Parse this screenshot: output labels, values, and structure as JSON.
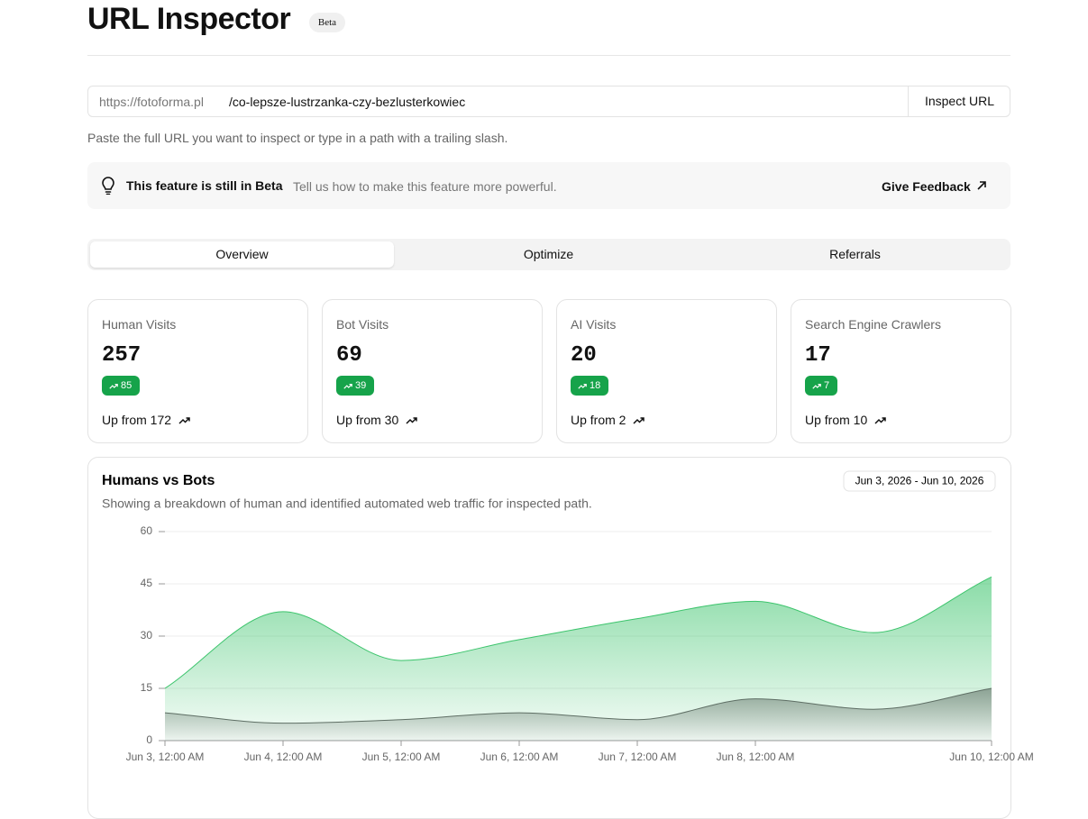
{
  "header": {
    "title": "URL Inspector",
    "badge": "Beta"
  },
  "url_input": {
    "prefix": "https://fotoforma.pl",
    "path": "/co-lepsze-lustrzanka-czy-bezlusterkowiec",
    "button": "Inspect URL",
    "hint": "Paste the full URL you want to inspect or type in a path with a trailing slash."
  },
  "banner": {
    "title": "This feature is still in Beta",
    "text": "Tell us how to make this feature more powerful.",
    "link": "Give Feedback"
  },
  "tabs": [
    "Overview",
    "Optimize",
    "Referrals"
  ],
  "cards": [
    {
      "label": "Human Visits",
      "value": 257,
      "change": 85,
      "note": "Up from 172"
    },
    {
      "label": "Bot Visits",
      "value": 69,
      "change": 39,
      "note": "Up from 30"
    },
    {
      "label": "AI Visits",
      "value": 20,
      "change": 18,
      "note": "Up from 2"
    },
    {
      "label": "Search Engine Crawlers",
      "value": 17,
      "change": 7,
      "note": "Up from 10"
    }
  ],
  "chart": {
    "type": "area",
    "title": "Humans vs Bots",
    "date_range": "Jun 3, 2026 - Jun 10, 2026",
    "subtitle": "Showing a breakdown of human and identified automated web traffic for inspected path.",
    "categories": [
      "Jun 3, 12:00 AM",
      "Jun 4, 12:00 AM",
      "Jun 5, 12:00 AM",
      "Jun 6, 12:00 AM",
      "Jun 7, 12:00 AM",
      "Jun 8, 12:00 AM",
      null,
      "Jun 10, 12:00 AM"
    ],
    "series": [
      {
        "color": "#3cc46c",
        "values": [
          15,
          37,
          23,
          29,
          35,
          40,
          31,
          47
        ]
      },
      {
        "color": "#5e6e64",
        "values": [
          8,
          5,
          6,
          8,
          6,
          12,
          9,
          15
        ]
      }
    ],
    "ylim": [
      0,
      60
    ],
    "yticks": [
      0,
      15,
      30,
      45,
      60
    ],
    "grid": true
  }
}
